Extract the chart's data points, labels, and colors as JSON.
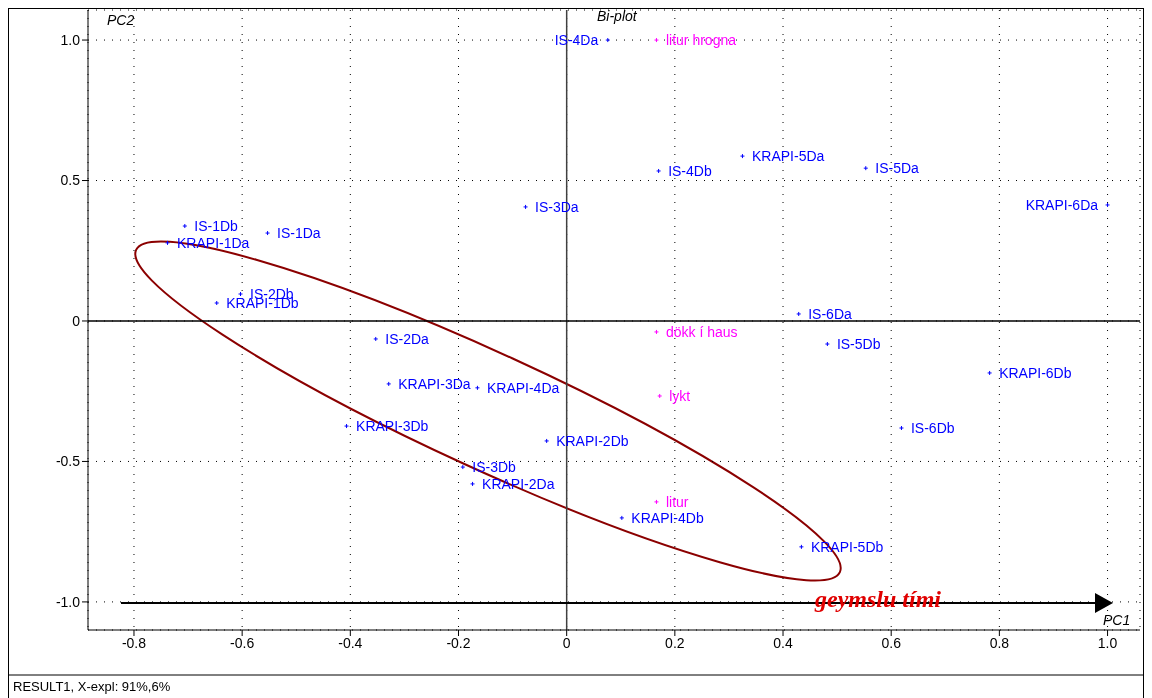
{
  "chart_data": {
    "type": "scatter",
    "title": "Bi-plot",
    "xlabel": "PC1",
    "ylabel": "PC2",
    "annotations": [
      "geymslu tími",
      "RESULT1, X-expl: 91%,6%"
    ],
    "xlim": [
      -0.885,
      1.06
    ],
    "ylim": [
      -1.1,
      1.107
    ],
    "xticks": [
      -0.8,
      -0.6,
      -0.4,
      -0.2,
      0,
      0.2,
      0.4,
      0.6,
      0.8,
      {
        "value": 1,
        "label": "1.0"
      }
    ],
    "yticks": [
      {
        "value": -1,
        "label": "-1.0"
      },
      -0.5,
      0,
      0.5,
      {
        "value": 1,
        "label": "1.0"
      }
    ],
    "grid": true,
    "legend": false,
    "marker": "cross",
    "ref_lines": [
      {
        "axis": "x",
        "value": 0,
        "color": "#404040"
      },
      {
        "axis": "y",
        "value": 0,
        "color": "#000000"
      }
    ],
    "series": [
      {
        "name": "IS-4Da",
        "color": "#0000ff",
        "x": [
          0.076
        ],
        "values": [
          1.0
        ]
      },
      {
        "name": "litur hrogna",
        "color": "#ff00ff",
        "x": [
          0.166
        ],
        "values": [
          1.0
        ]
      },
      {
        "name": "KRAPI-5Da",
        "color": "#0000ff",
        "x": [
          0.325
        ],
        "values": [
          0.587
        ]
      },
      {
        "name": "IS-4Db",
        "color": "#0000ff",
        "x": [
          0.17
        ],
        "values": [
          0.534
        ]
      },
      {
        "name": "IS-5Da",
        "color": "#0000ff",
        "x": [
          0.553
        ],
        "values": [
          0.544
        ]
      },
      {
        "name": "KRAPI-6Da",
        "color": "#0000ff",
        "x": [
          1.0
        ],
        "values": [
          0.413
        ]
      },
      {
        "name": "IS-3Da",
        "color": "#0000ff",
        "x": [
          -0.076
        ],
        "values": [
          0.406
        ]
      },
      {
        "name": "IS-1Db",
        "color": "#0000ff",
        "x": [
          -0.706
        ],
        "values": [
          0.338
        ]
      },
      {
        "name": "IS-1Da",
        "color": "#0000ff",
        "x": [
          -0.553
        ],
        "values": [
          0.313
        ]
      },
      {
        "name": "KRAPI-1Da",
        "color": "#0000ff",
        "x": [
          -0.738
        ],
        "values": [
          0.278
        ]
      },
      {
        "name": "IS-2Db",
        "color": "#0000ff",
        "x": [
          -0.603
        ],
        "values": [
          0.096
        ]
      },
      {
        "name": "KRAPI-1Db",
        "color": "#0000ff",
        "x": [
          -0.647
        ],
        "values": [
          0.064
        ]
      },
      {
        "name": "IS-6Da",
        "color": "#0000ff",
        "x": [
          0.429
        ],
        "values": [
          0.025
        ]
      },
      {
        "name": "dökk í haus",
        "color": "#ff00ff",
        "x": [
          0.166
        ],
        "values": [
          -0.039
        ]
      },
      {
        "name": "IS-5Db",
        "color": "#0000ff",
        "x": [
          0.482
        ],
        "values": [
          -0.082
        ]
      },
      {
        "name": "IS-2Da",
        "color": "#0000ff",
        "x": [
          -0.353
        ],
        "values": [
          -0.064
        ]
      },
      {
        "name": "KRAPI-3Da",
        "color": "#0000ff",
        "x": [
          -0.329
        ],
        "values": [
          -0.224
        ]
      },
      {
        "name": "KRAPI-4Da",
        "color": "#0000ff",
        "x": [
          -0.165
        ],
        "values": [
          -0.238
        ]
      },
      {
        "name": "KRAPI-6Db",
        "color": "#0000ff",
        "x": [
          0.782
        ],
        "values": [
          -0.185
        ]
      },
      {
        "name": "lykt",
        "color": "#ff00ff",
        "x": [
          0.172
        ],
        "values": [
          -0.267
        ]
      },
      {
        "name": "KRAPI-3Db",
        "color": "#0000ff",
        "x": [
          -0.407
        ],
        "values": [
          -0.374
        ]
      },
      {
        "name": "IS-6Db",
        "color": "#0000ff",
        "x": [
          0.619
        ],
        "values": [
          -0.381
        ]
      },
      {
        "name": "KRAPI-2Db",
        "color": "#0000ff",
        "x": [
          -0.037
        ],
        "values": [
          -0.427
        ]
      },
      {
        "name": "IS-3Db",
        "color": "#0000ff",
        "x": [
          -0.192
        ],
        "values": [
          -0.52
        ]
      },
      {
        "name": "KRAPI-2Da",
        "color": "#0000ff",
        "x": [
          -0.174
        ],
        "values": [
          -0.58
        ]
      },
      {
        "name": "litur",
        "color": "#ff00ff",
        "x": [
          0.166
        ],
        "values": [
          -0.644
        ]
      },
      {
        "name": "KRAPI-4Db",
        "color": "#0000ff",
        "x": [
          0.102
        ],
        "values": [
          -0.701
        ]
      },
      {
        "name": "KRAPI-5Db",
        "color": "#0000ff",
        "x": [
          0.434
        ],
        "values": [
          -0.804
        ]
      }
    ]
  }
}
